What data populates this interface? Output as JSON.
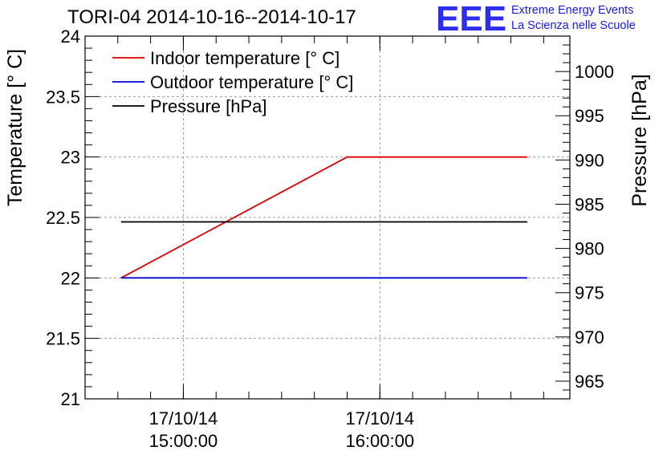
{
  "header": {
    "title": "TORI-04 2014-10-16--2014-10-17",
    "logo": "EEE",
    "logo_line1": "Extreme Energy Events",
    "logo_line2": "La Scienza nelle Scuole"
  },
  "colors": {
    "indoor": "#dd0000",
    "outdoor": "#0000dd",
    "pressure": "#000000",
    "grid": "#9a9a9a",
    "logo": "#2d2df0"
  },
  "chart_data": {
    "type": "line",
    "title": "TORI-04 2014-10-16--2014-10-17",
    "ylabel": "Temperature [° C]",
    "y2label": "Pressure [hPa]",
    "ylim": [
      21,
      24
    ],
    "y2lim": [
      963,
      1004
    ],
    "xlim": [
      "2014-10-17 14:30:00",
      "2014-10-17 16:58:00"
    ],
    "grid": true,
    "legend_position": "top-left",
    "yticks": [
      "21",
      "21.5",
      "22",
      "22.5",
      "23",
      "23.5",
      "24"
    ],
    "y2ticks": [
      "965",
      "970",
      "975",
      "980",
      "985",
      "990",
      "995",
      "1000"
    ],
    "xticks": [
      {
        "date": "17/10/14",
        "time": "15:00:00"
      },
      {
        "date": "17/10/14",
        "time": "16:00:00"
      }
    ],
    "series": [
      {
        "name": "Indoor temperature [° C]",
        "axis": "left",
        "x": [
          "2014-10-17 14:41:00",
          "2014-10-17 15:50:00",
          "2014-10-17 16:45:00"
        ],
        "values": [
          22.0,
          23.0,
          23.0
        ]
      },
      {
        "name": "Outdoor temperature [° C]",
        "axis": "left",
        "x": [
          "2014-10-17 14:41:00",
          "2014-10-17 16:45:00"
        ],
        "values": [
          22.0,
          22.0
        ]
      },
      {
        "name": "Pressure [hPa]",
        "axis": "right",
        "x": [
          "2014-10-17 14:41:00",
          "2014-10-17 16:45:00"
        ],
        "values": [
          983,
          983
        ]
      }
    ]
  }
}
